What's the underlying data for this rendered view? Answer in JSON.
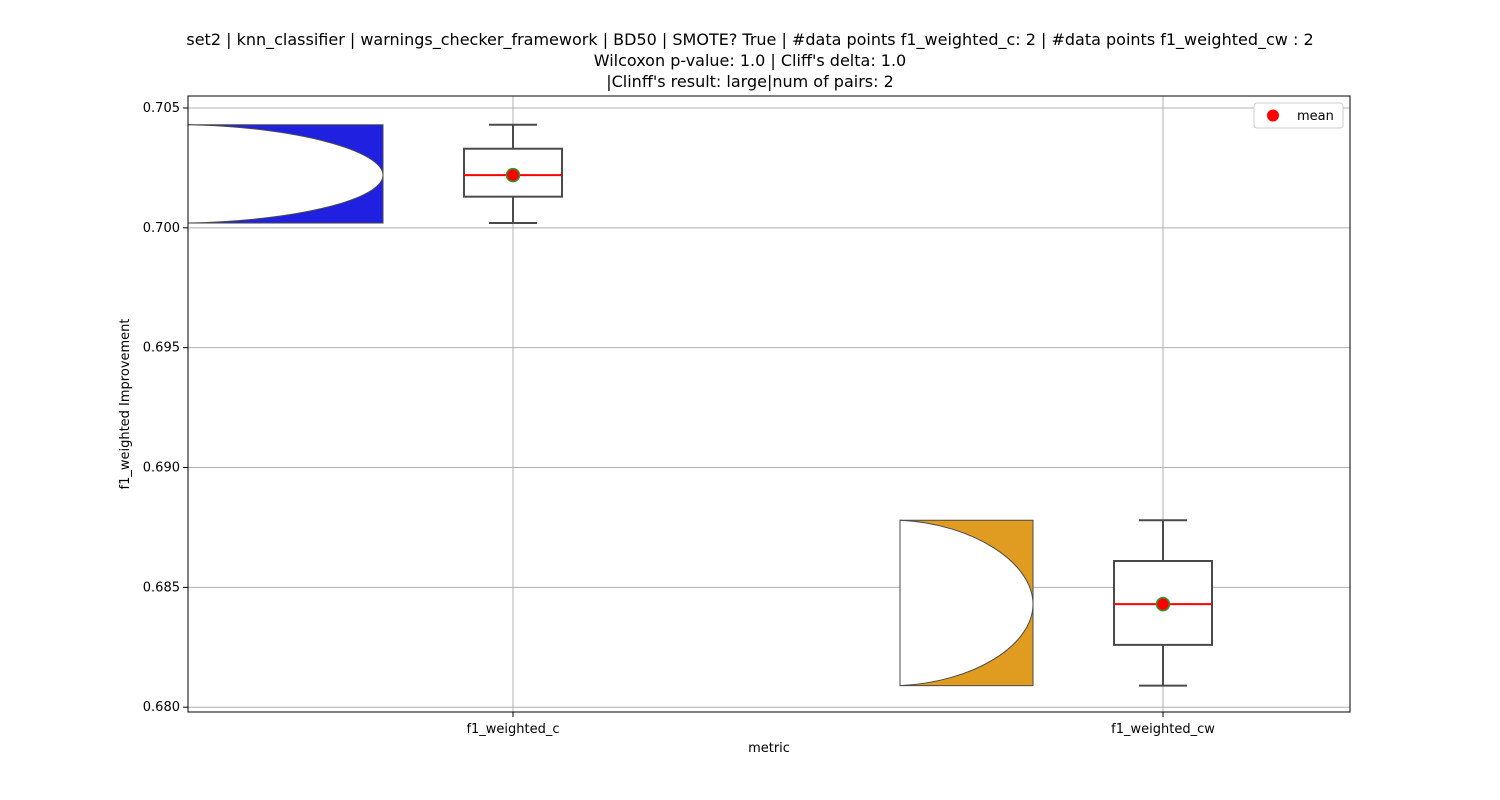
{
  "chart_data": {
    "type": "violin_box",
    "title_lines": [
      "set2 | knn_classifier | warnings_checker_framework | BD50 | SMOTE? True | #data points f1_weighted_c: 2 | #data points f1_weighted_cw : 2",
      "Wilcoxon p-value: 1.0 | Cliff's delta: 1.0",
      "|Clinff's result: large|num of pairs: 2"
    ],
    "xlabel": "metric",
    "ylabel": "f1_weighted Improvement",
    "categories": [
      "f1_weighted_c",
      "f1_weighted_cw"
    ],
    "ylim": [
      0.6798,
      0.7055
    ],
    "yticks": [
      0.68,
      0.685,
      0.69,
      0.695,
      0.7,
      0.705
    ],
    "ytick_labels": [
      "0.680",
      "0.685",
      "0.690",
      "0.695",
      "0.700",
      "0.705"
    ],
    "grid": true,
    "legend": {
      "position": "top-right",
      "entries": [
        "mean"
      ]
    },
    "series": [
      {
        "category": "f1_weighted_c",
        "violin_color": "#2020e0",
        "min": 0.7002,
        "q1": 0.7013,
        "median": 0.7022,
        "q3": 0.7033,
        "max": 0.7043,
        "mean": 0.7022
      },
      {
        "category": "f1_weighted_cw",
        "violin_color": "#e09c20",
        "min": 0.6809,
        "q1": 0.6826,
        "median": 0.6843,
        "q3": 0.6861,
        "max": 0.6878,
        "mean": 0.6843
      }
    ],
    "colors": {
      "median_line": "#ff0000",
      "mean_marker": "#ff0000",
      "mean_marker_edge": "#2a9d2a",
      "box_edge": "#4a4a4a",
      "grid": "#b0b0b0"
    }
  }
}
